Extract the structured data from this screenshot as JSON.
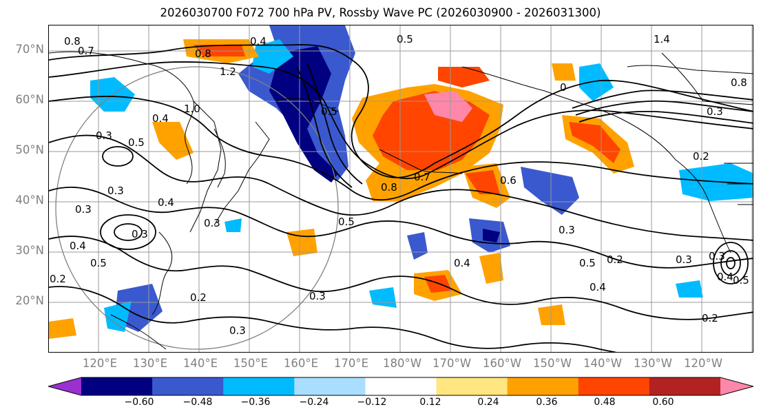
{
  "title": "2026030700 F072 700 hPa PV, Rossby Wave PC (2026030900 - 2026031300)",
  "lat_labels": [
    "70°N",
    "60°N",
    "50°N",
    "40°N",
    "30°N",
    "20°N"
  ],
  "lon_labels": [
    "120°E",
    "130°E",
    "140°E",
    "150°E",
    "160°E",
    "170°E",
    "180°W",
    "170°W",
    "160°W",
    "150°W",
    "140°W",
    "130°W",
    "120°W"
  ],
  "colorbar": {
    "colors": [
      "#9b30d0",
      "#000080",
      "#3a59cf",
      "#00bbff",
      "#aadeff",
      "#ffffff",
      "#ffe680",
      "#ffa200",
      "#ff4500",
      "#b22222",
      "#ff88aa"
    ],
    "tick_labels": [
      "−0.60",
      "−0.48",
      "−0.36",
      "−0.24",
      "−0.12",
      "0.12",
      "0.24",
      "0.36",
      "0.48",
      "0.60"
    ]
  },
  "contour_labels": [
    "0.8",
    "0.7",
    "0.4",
    "0.5",
    "0.8",
    "1.2",
    "1.0",
    "0.4",
    "0.5",
    "0.3",
    "0.5",
    "0.3",
    "0.4",
    "0.3",
    "0.3",
    "0.4",
    "0.5",
    "0.2",
    "0.3",
    "0.3",
    "0.2",
    "0.3",
    "0.5",
    "0.4",
    "0.7",
    "0.6",
    "0.8",
    "0.3",
    "0.5",
    "0.4",
    "0.3",
    "0.2",
    "0.3",
    "0.2",
    "0.4",
    "0.8",
    "1.4",
    "0.5",
    "0.3",
    "0.2",
    "0"
  ]
}
